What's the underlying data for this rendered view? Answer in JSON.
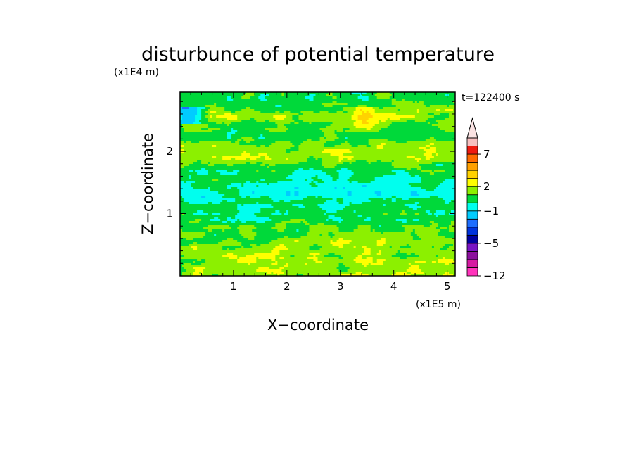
{
  "chart_data": {
    "type": "heatmap",
    "title": "disturbunce of potential temperature",
    "time_label": "t=122400 s",
    "xlabel": "X−coordinate",
    "ylabel": "Z−coordinate",
    "x_unit": "(x1E5 m)",
    "y_unit": "(x1E4 m)",
    "xlim": [
      0,
      5.15
    ],
    "ylim": [
      0,
      2.95
    ],
    "x_ticks": [
      {
        "value": 1,
        "label": "1"
      },
      {
        "value": 2,
        "label": "2"
      },
      {
        "value": 3,
        "label": "3"
      },
      {
        "value": 4,
        "label": "4"
      },
      {
        "value": 5,
        "label": "5"
      }
    ],
    "y_ticks": [
      {
        "value": 1,
        "label": "1"
      },
      {
        "value": 2,
        "label": "2"
      }
    ],
    "colorbar": {
      "extend": "max",
      "levels": [
        -12,
        -10,
        -8,
        -6,
        -5,
        -4,
        -3,
        -2,
        -1,
        0,
        1,
        2,
        3,
        4,
        5,
        7,
        9,
        11
      ],
      "colors": [
        "#ff33bb",
        "#d61aa1",
        "#8c0f9e",
        "#7a14c4",
        "#0000a0",
        "#0033dd",
        "#1e6eff",
        "#00ccff",
        "#00ffee",
        "#00d93a",
        "#8cf000",
        "#ffff00",
        "#ffd200",
        "#ffa000",
        "#ff6a00",
        "#ee1a10",
        "#f7c0c0"
      ],
      "extend_color": "#fbe3e3",
      "labels": [
        {
          "value": -12,
          "label": "−12"
        },
        {
          "value": -5,
          "label": "−5"
        },
        {
          "value": -1,
          "label": "−1"
        },
        {
          "value": 2,
          "label": "2"
        },
        {
          "value": 7,
          "label": "7"
        }
      ]
    },
    "field_rows": [
      {
        "z": 2.82,
        "value": 0.6,
        "note": "green band at top"
      },
      {
        "z": 2.55,
        "value": 1.6,
        "note": "yellow / orange band, blue patch near x=0.2"
      },
      {
        "z": 2.3,
        "value": 0.5,
        "note": "green band"
      },
      {
        "z": 2.0,
        "value": 1.7,
        "note": "yellow band with orange patches"
      },
      {
        "z": 1.7,
        "value": 0.5,
        "note": "green band"
      },
      {
        "z": 1.3,
        "value": -0.4,
        "note": "cyan band"
      },
      {
        "z": 0.9,
        "value": 0.5,
        "note": "green band"
      },
      {
        "z": 0.4,
        "value": 1.6,
        "note": "yellow near-surface layer"
      }
    ],
    "grid": false
  }
}
